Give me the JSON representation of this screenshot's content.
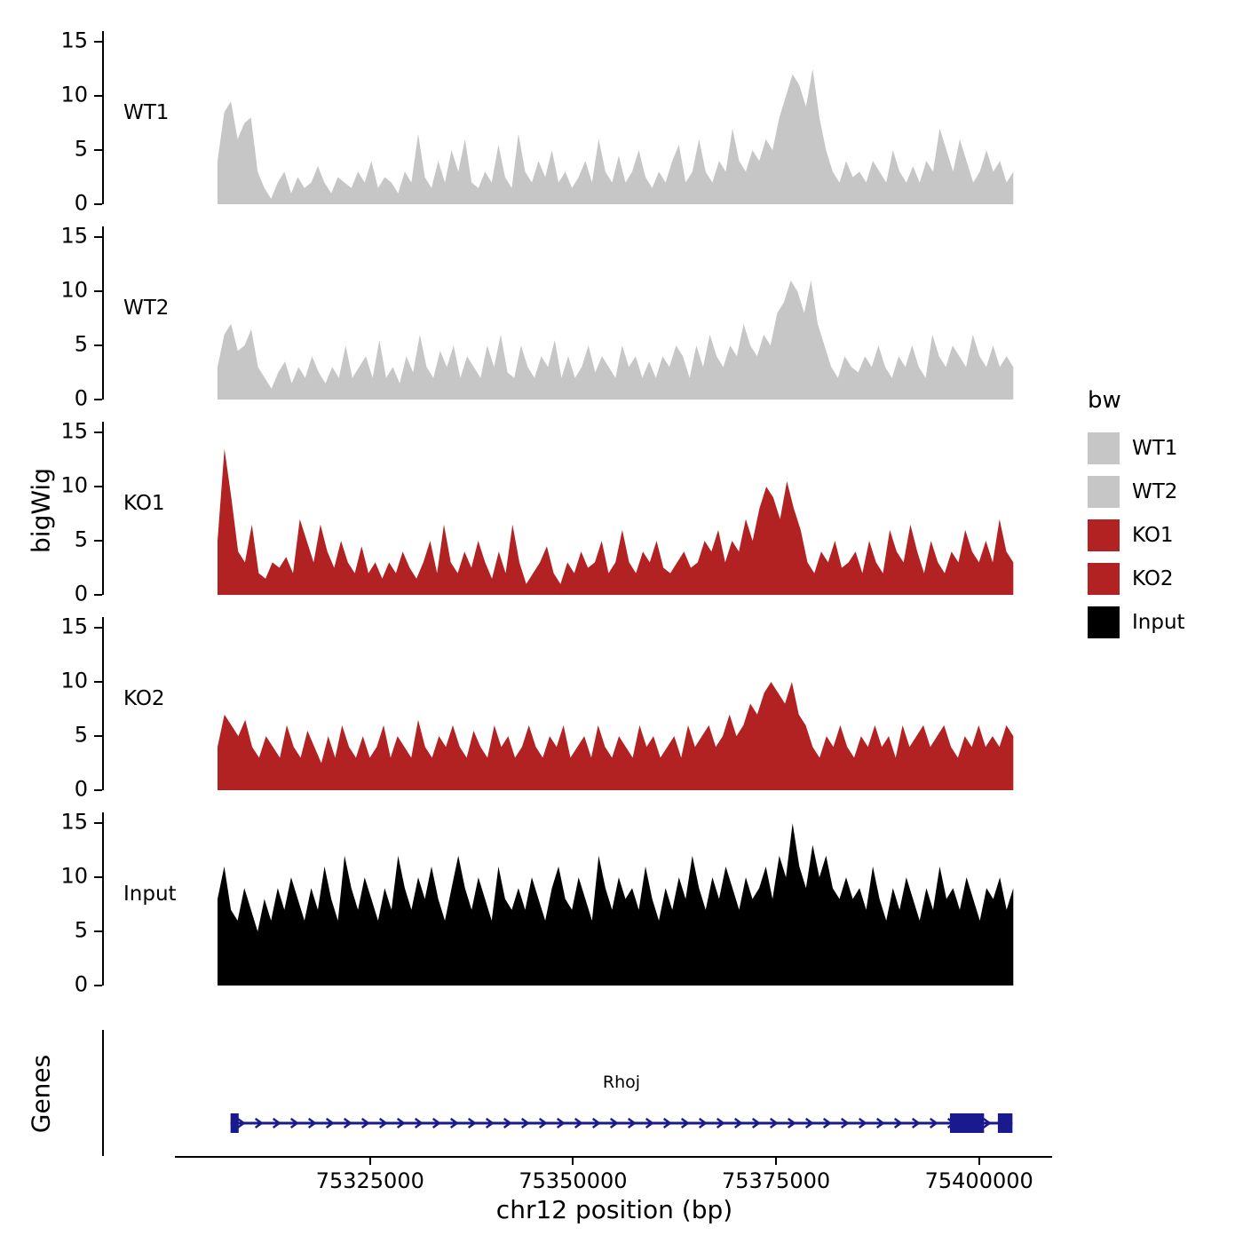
{
  "figure": {
    "background": "#ffffff",
    "axis_color": "#000000"
  },
  "chart_data": {
    "type": "area",
    "title": "",
    "xlabel": "chr12 position (bp)",
    "ylabel": "bigWig",
    "x_domain": [
      75292000,
      75409000
    ],
    "x_data_range": [
      75306000,
      75404000
    ],
    "x_ticks": [
      75325000,
      75350000,
      75375000,
      75400000
    ],
    "y_ticks": [
      0,
      5,
      10,
      15
    ],
    "ylim": [
      0,
      16
    ],
    "grid": false,
    "legend": {
      "title": "bw",
      "position": "right",
      "entries": [
        {
          "label": "WT1",
          "color": "#c6c6c6"
        },
        {
          "label": "WT2",
          "color": "#c6c6c6"
        },
        {
          "label": "KO1",
          "color": "#b22222"
        },
        {
          "label": "KO2",
          "color": "#b22222"
        },
        {
          "label": "Input",
          "color": "#000000"
        }
      ]
    },
    "tracks": [
      {
        "name": "WT1",
        "color": "#c6c6c6",
        "values": [
          4,
          8.5,
          9.5,
          6,
          7.5,
          8,
          3,
          1.5,
          0.5,
          2,
          3,
          1,
          2.5,
          1.5,
          2,
          3.5,
          2,
          1,
          2.5,
          2,
          1.5,
          3,
          2,
          4,
          1.5,
          2.5,
          2,
          1,
          3,
          2,
          6.5,
          2.5,
          1.5,
          4,
          2,
          5,
          3,
          6,
          2,
          1.5,
          3,
          2,
          5.5,
          2.5,
          1.5,
          6.5,
          3,
          2,
          4,
          2.5,
          5,
          2,
          3,
          1.5,
          2.5,
          4,
          2,
          6,
          3,
          2,
          4.5,
          2,
          3,
          5,
          2.5,
          1.5,
          3,
          2,
          4,
          5.5,
          2,
          3,
          6,
          3,
          2,
          4,
          3,
          7,
          4,
          3,
          5,
          4,
          6,
          5,
          8,
          10,
          12,
          11,
          9,
          12.5,
          8,
          5,
          3,
          2,
          4,
          2.5,
          3,
          2,
          4,
          3,
          2,
          5,
          3,
          2,
          3.5,
          2,
          4,
          3,
          7,
          5,
          3,
          6,
          4,
          2,
          3,
          5,
          3,
          4,
          2,
          3
        ]
      },
      {
        "name": "WT2",
        "color": "#c6c6c6",
        "values": [
          3,
          6,
          7,
          4.5,
          5,
          6.5,
          3,
          2,
          1,
          2.5,
          3.5,
          1.5,
          3,
          2,
          4,
          2.5,
          1.5,
          3,
          2,
          5,
          2,
          3,
          4,
          2,
          5.5,
          2,
          3,
          1.5,
          4,
          2.5,
          6,
          3,
          2,
          4.5,
          3,
          5,
          2,
          4,
          3,
          2,
          5,
          3,
          6,
          2.5,
          2,
          5,
          3,
          2,
          4,
          3,
          5.5,
          2,
          4,
          2,
          3,
          5,
          2.5,
          4,
          3,
          2,
          5,
          3,
          4,
          2,
          3.5,
          2,
          4,
          3,
          5,
          4,
          2,
          5,
          3,
          6,
          4,
          3,
          5,
          4,
          7,
          5,
          4,
          6,
          5,
          8,
          9,
          11,
          10,
          8,
          11,
          7,
          5,
          3,
          2,
          4,
          3,
          2.5,
          4,
          3,
          5,
          3,
          2,
          4,
          3,
          5,
          3,
          2,
          6,
          4,
          3,
          5,
          4,
          3,
          6,
          4,
          3,
          5,
          3,
          4,
          3
        ]
      },
      {
        "name": "KO1",
        "color": "#b22222",
        "values": [
          5,
          13.5,
          9,
          4,
          3,
          6.5,
          2,
          1.5,
          3,
          2.5,
          3.5,
          2,
          7,
          5,
          3,
          6.5,
          4,
          2.5,
          5,
          3,
          2,
          4.5,
          2,
          3,
          1.5,
          3,
          2,
          4,
          2.5,
          1.5,
          3,
          5,
          2,
          6.5,
          3,
          2,
          4,
          2.5,
          5,
          3,
          1.5,
          4,
          2,
          6.5,
          3,
          1,
          2,
          3,
          4.5,
          2,
          1,
          3,
          2,
          4,
          2.5,
          3,
          5,
          2,
          3,
          6,
          3,
          2,
          4,
          3,
          5,
          2.5,
          2,
          3,
          4,
          2.5,
          3,
          5,
          4,
          6,
          3,
          5,
          4,
          7,
          5,
          8,
          10,
          9,
          7,
          10.5,
          8,
          6,
          3,
          2,
          4,
          3,
          5,
          2.5,
          3,
          4,
          2,
          5,
          3,
          2,
          6,
          4,
          3,
          6.5,
          4,
          2,
          5,
          3,
          2,
          4,
          3,
          6,
          4,
          3,
          5,
          3,
          7,
          4,
          3
        ]
      },
      {
        "name": "KO2",
        "color": "#b22222",
        "values": [
          4,
          7,
          6,
          5,
          6.5,
          4,
          3,
          5,
          4,
          3,
          6,
          4,
          3,
          5.5,
          4,
          2.5,
          5,
          3,
          6,
          4,
          3,
          5,
          3,
          4,
          6,
          3,
          5,
          4,
          3,
          6.5,
          4,
          3,
          5,
          4,
          6,
          4,
          3,
          5.5,
          4,
          3,
          6,
          4,
          5,
          3,
          4,
          6,
          4,
          3,
          5,
          4,
          6,
          3,
          4,
          5,
          3,
          6,
          4,
          3,
          5,
          4,
          3,
          6,
          4,
          5,
          3,
          4,
          5,
          3,
          6,
          4,
          5,
          6,
          4,
          5,
          7,
          5,
          6,
          8,
          7,
          9,
          10,
          9,
          8,
          10,
          7,
          6,
          4,
          3,
          5,
          4,
          6,
          4,
          3,
          5,
          4,
          6,
          4,
          5,
          3,
          6,
          4,
          5,
          6,
          4,
          5,
          6,
          4,
          3,
          5,
          4,
          6,
          4,
          5,
          4,
          6,
          5
        ]
      },
      {
        "name": "Input",
        "color": "#000000",
        "values": [
          8,
          11,
          7,
          6,
          9,
          7,
          5,
          8,
          6,
          9,
          7,
          10,
          8,
          6,
          9,
          7,
          11,
          8,
          6,
          12,
          9,
          7,
          10,
          8,
          6,
          9,
          7,
          12,
          9,
          7,
          10,
          8,
          11,
          8,
          6,
          9,
          12,
          9,
          7,
          10,
          8,
          6,
          11,
          8,
          7,
          9,
          7,
          10,
          8,
          6,
          9,
          11,
          8,
          7,
          10,
          8,
          6,
          12,
          9,
          7,
          10,
          8,
          9,
          7,
          11,
          8,
          6,
          9,
          7,
          10,
          8,
          12,
          9,
          7,
          10,
          8,
          11,
          9,
          7,
          10,
          8,
          9,
          11,
          8,
          12,
          10,
          15,
          11,
          9,
          13,
          10,
          12,
          9,
          8,
          10,
          8,
          9,
          7,
          11,
          8,
          6,
          9,
          7,
          10,
          8,
          6,
          9,
          7,
          11,
          8,
          9,
          7,
          10,
          8,
          6,
          9,
          8,
          10,
          7,
          9
        ]
      }
    ],
    "genes_track": {
      "label": "Genes",
      "gene": {
        "name": "Rhoj",
        "strand": "+",
        "start": 75307600,
        "end": 75403900,
        "exons": [
          [
            75307600,
            75308600
          ],
          [
            75396200,
            75400400
          ],
          [
            75402100,
            75403900
          ]
        ],
        "color": "#1a1a8f"
      }
    }
  }
}
